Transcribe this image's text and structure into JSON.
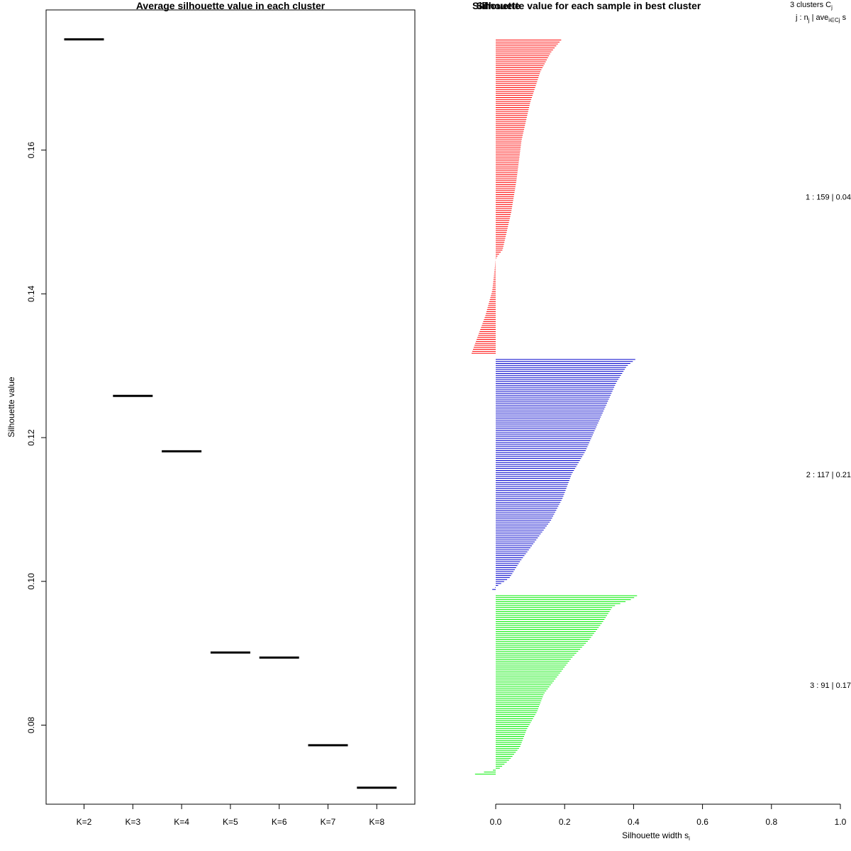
{
  "chart_data": [
    {
      "type": "line",
      "title": "Average silhouette value in each cluster",
      "xlabel": "",
      "ylabel": "Silhouette value",
      "categories": [
        "K=2",
        "K=3",
        "K=4",
        "K=5",
        "K=6",
        "K=7",
        "K=8"
      ],
      "values": [
        0.1754,
        0.1258,
        0.1181,
        0.0901,
        0.0894,
        0.0772,
        0.0713
      ],
      "yticks": [
        "0.08",
        "0.10",
        "0.12",
        "0.14",
        "0.16"
      ],
      "ylim": [
        0.069,
        0.1795
      ],
      "grid": false
    },
    {
      "type": "bar",
      "orientation": "horizontal",
      "title": "Silhouette value for each sample in best cluster",
      "overlay_text": "Silhouette",
      "xlabel": "Silhouette width s",
      "xlabel_sub": "i",
      "xlim": [
        0,
        1
      ],
      "xticks": [
        "0.0",
        "0.2",
        "0.4",
        "0.6",
        "0.8",
        "1.0"
      ],
      "legend_header_line1": "3  clusters  C",
      "legend_header_line1_sub": "j",
      "legend_header_line2_prefix": "j :  n",
      "legend_header_line2_sub1": "j",
      "legend_header_line2_mid": " | ave",
      "legend_header_line2_sub2": "i∈Cj",
      "legend_header_line2_suffix": "  s",
      "clusters": [
        {
          "label": "1 :  159  |  0.04",
          "color": "#ff0000",
          "n": 159,
          "avg": 0.04,
          "profile": [
            [
              0,
              0.19
            ],
            [
              0.04,
              0.16
            ],
            [
              0.1,
              0.13
            ],
            [
              0.2,
              0.1
            ],
            [
              0.32,
              0.075
            ],
            [
              0.45,
              0.06
            ],
            [
              0.55,
              0.045
            ],
            [
              0.67,
              0.02
            ],
            [
              0.69,
              0.005
            ],
            [
              0.7,
              0.0
            ],
            [
              0.72,
              -0.002
            ],
            [
              0.8,
              -0.01
            ],
            [
              0.88,
              -0.03
            ],
            [
              0.94,
              -0.05
            ],
            [
              1.0,
              -0.07
            ]
          ]
        },
        {
          "label": "2 :  117  |  0.21",
          "color": "#0000cc",
          "n": 117,
          "avg": 0.21,
          "profile": [
            [
              0,
              0.405
            ],
            [
              0.03,
              0.38
            ],
            [
              0.1,
              0.35
            ],
            [
              0.2,
              0.32
            ],
            [
              0.3,
              0.29
            ],
            [
              0.4,
              0.26
            ],
            [
              0.5,
              0.22
            ],
            [
              0.6,
              0.195
            ],
            [
              0.7,
              0.16
            ],
            [
              0.8,
              0.11
            ],
            [
              0.88,
              0.07
            ],
            [
              0.95,
              0.04
            ],
            [
              0.98,
              0.01
            ],
            [
              1.0,
              -0.01
            ]
          ]
        },
        {
          "label": "3 :  91  |  0.17",
          "color": "#00ee00",
          "n": 91,
          "avg": 0.17,
          "profile": [
            [
              0,
              0.41
            ],
            [
              0.02,
              0.395
            ],
            [
              0.06,
              0.34
            ],
            [
              0.15,
              0.31
            ],
            [
              0.25,
              0.27
            ],
            [
              0.35,
              0.22
            ],
            [
              0.45,
              0.18
            ],
            [
              0.55,
              0.14
            ],
            [
              0.65,
              0.12
            ],
            [
              0.75,
              0.09
            ],
            [
              0.85,
              0.07
            ],
            [
              0.92,
              0.04
            ],
            [
              0.97,
              0.01
            ],
            [
              1.0,
              -0.06
            ]
          ]
        }
      ]
    }
  ]
}
